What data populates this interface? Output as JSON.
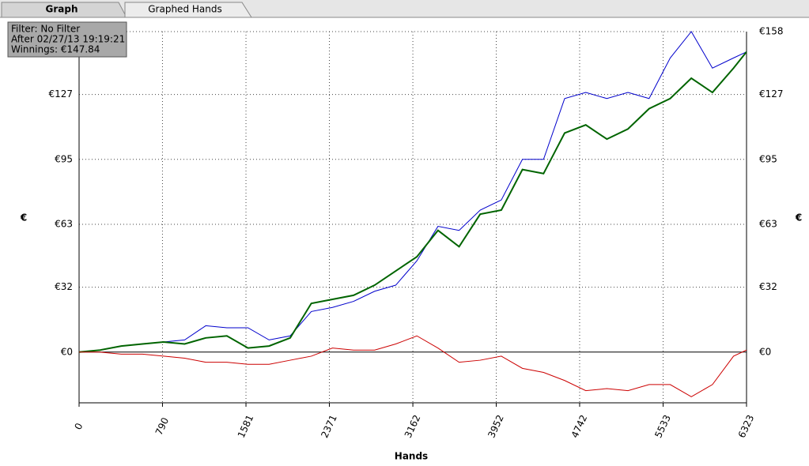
{
  "tabs": [
    "Graph",
    "Graphed Hands"
  ],
  "info_box": [
    "Filter: No Filter",
    "After 02/27/13 19:19:21",
    "Winnings: €147.84"
  ],
  "chart_data": {
    "type": "line",
    "x_label": "Hands",
    "y_label": "€",
    "y2_label": "€",
    "x": [
      0,
      200,
      400,
      600,
      800,
      1000,
      1200,
      1400,
      1600,
      1800,
      2000,
      2200,
      2400,
      2600,
      2800,
      3000,
      3200,
      3400,
      3600,
      3800,
      4000,
      4200,
      4400,
      4600,
      4800,
      5000,
      5200,
      5400,
      5600,
      5800,
      6000,
      6200,
      6323
    ],
    "series": [
      {
        "color": "#0000cc",
        "values": [
          0,
          1,
          3,
          4,
          5,
          6,
          13,
          12,
          12,
          6,
          8,
          20,
          22,
          25,
          30,
          33,
          45,
          62,
          60,
          70,
          75,
          95,
          95,
          125,
          128,
          125,
          128,
          125,
          145,
          158,
          140,
          145,
          148
        ]
      },
      {
        "color": "#006400",
        "values": [
          0,
          1,
          3,
          4,
          5,
          4,
          7,
          8,
          2,
          3,
          7,
          24,
          26,
          28,
          33,
          40,
          47,
          60,
          52,
          68,
          70,
          90,
          88,
          108,
          112,
          105,
          110,
          120,
          125,
          135,
          128,
          140,
          148
        ]
      },
      {
        "color": "#cc0000",
        "values": [
          0,
          0,
          -1,
          -1,
          -2,
          -3,
          -5,
          -5,
          -6,
          -6,
          -4,
          -2,
          2,
          1,
          1,
          4,
          8,
          2,
          -5,
          -4,
          -2,
          -8,
          -10,
          -14,
          -19,
          -18,
          -19,
          -16,
          -16,
          -22,
          -16,
          -2,
          1
        ]
      }
    ],
    "xlim": [
      0,
      6323
    ],
    "xticks": [
      0,
      790,
      1581,
      2371,
      3162,
      3952,
      4742,
      5533,
      6323
    ],
    "ylim": [
      -25,
      158
    ],
    "yticks": [
      {
        "value": 0,
        "label": "€0"
      },
      {
        "value": 32,
        "label": "€32"
      },
      {
        "value": 63,
        "label": "€63"
      },
      {
        "value": 95,
        "label": "€95"
      },
      {
        "value": 127,
        "label": "€127"
      },
      {
        "value": 158,
        "label": "€158"
      }
    ],
    "grid": true
  }
}
